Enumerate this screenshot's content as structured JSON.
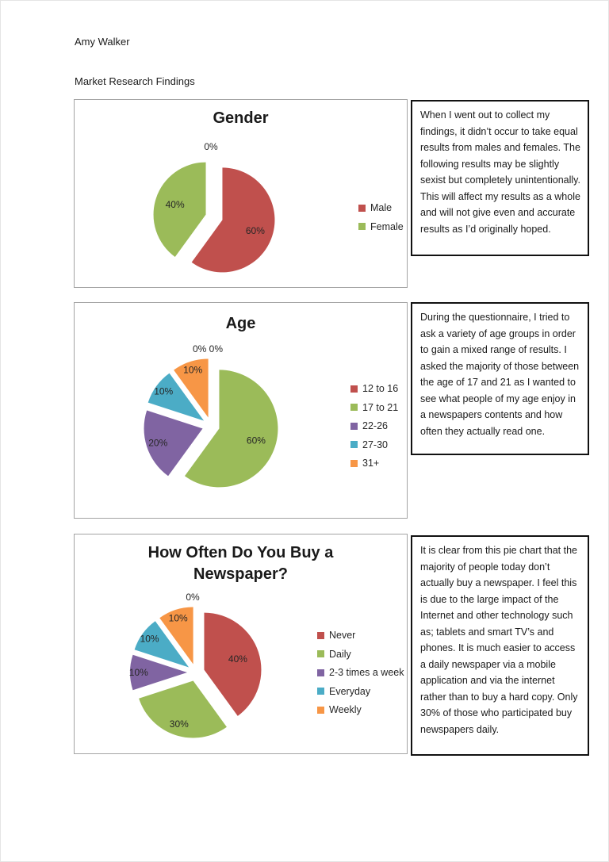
{
  "page": {
    "author": "Amy Walker",
    "title": "Market Research Findings"
  },
  "chart_data": [
    {
      "type": "pie",
      "title": "Gender",
      "legend_position": "right",
      "data_labels": "percent",
      "exploded": true,
      "slices": [
        {
          "label": "Male",
          "value": 60,
          "percent_label": "60%",
          "color": "#C0504D"
        },
        {
          "label": "Female",
          "value": 40,
          "percent_label": "40%",
          "color": "#9BBB59"
        }
      ],
      "zero_labels": [
        "0%"
      ]
    },
    {
      "type": "pie",
      "title": "Age",
      "legend_position": "right",
      "data_labels": "percent",
      "exploded": true,
      "slices": [
        {
          "label": "12 to 16",
          "value": 0,
          "percent_label": "0%",
          "color": "#C0504D"
        },
        {
          "label": "17 to 21",
          "value": 60,
          "percent_label": "60%",
          "color": "#9BBB59"
        },
        {
          "label": "22-26",
          "value": 20,
          "percent_label": "20%",
          "color": "#8064A2"
        },
        {
          "label": "27-30",
          "value": 10,
          "percent_label": "10%",
          "color": "#4BACC6"
        },
        {
          "label": "31+",
          "value": 10,
          "percent_label": "10%",
          "color": "#F79646"
        }
      ],
      "zero_labels": [
        "0%",
        "0%"
      ]
    },
    {
      "type": "pie",
      "title": "How Often Do You Buy a\nNewspaper?",
      "legend_position": "right",
      "data_labels": "percent",
      "exploded": true,
      "slices": [
        {
          "label": "Never",
          "value": 40,
          "percent_label": "40%",
          "color": "#C0504D"
        },
        {
          "label": "Daily",
          "value": 30,
          "percent_label": "30%",
          "color": "#9BBB59"
        },
        {
          "label": "2-3 times a week",
          "value": 10,
          "percent_label": "10%",
          "color": "#8064A2"
        },
        {
          "label": "Everyday",
          "value": 10,
          "percent_label": "10%",
          "color": "#4BACC6"
        },
        {
          "label": "Weekly",
          "value": 10,
          "percent_label": "10%",
          "color": "#F79646"
        }
      ],
      "zero_labels": [
        "0%"
      ]
    }
  ],
  "notes": [
    {
      "text": "When I went out to collect my findings, it didn’t occur to take equal results from males and females. The following results may be slightly sexist but completely unintentionally. This will affect my results as a whole and will not give even and accurate results as I’d originally hoped."
    },
    {
      "text": "During the questionnaire, I tried to ask a variety of age groups in order to gain a mixed range of results. I asked the majority of those between the age of 17 and 21 as I wanted to see what people of my age enjoy in a newspapers contents and how often they actually read one."
    },
    {
      "text": "It is clear from this pie chart that the majority of people today don’t actually buy a newspaper. I feel this is due to the large impact of the Internet and other technology such as; tablets and smart TV’s and phones. It is much easier to access a daily newspaper via a mobile application and via the internet rather than to buy a hard copy. Only 30% of those who participated buy newspapers daily."
    }
  ]
}
